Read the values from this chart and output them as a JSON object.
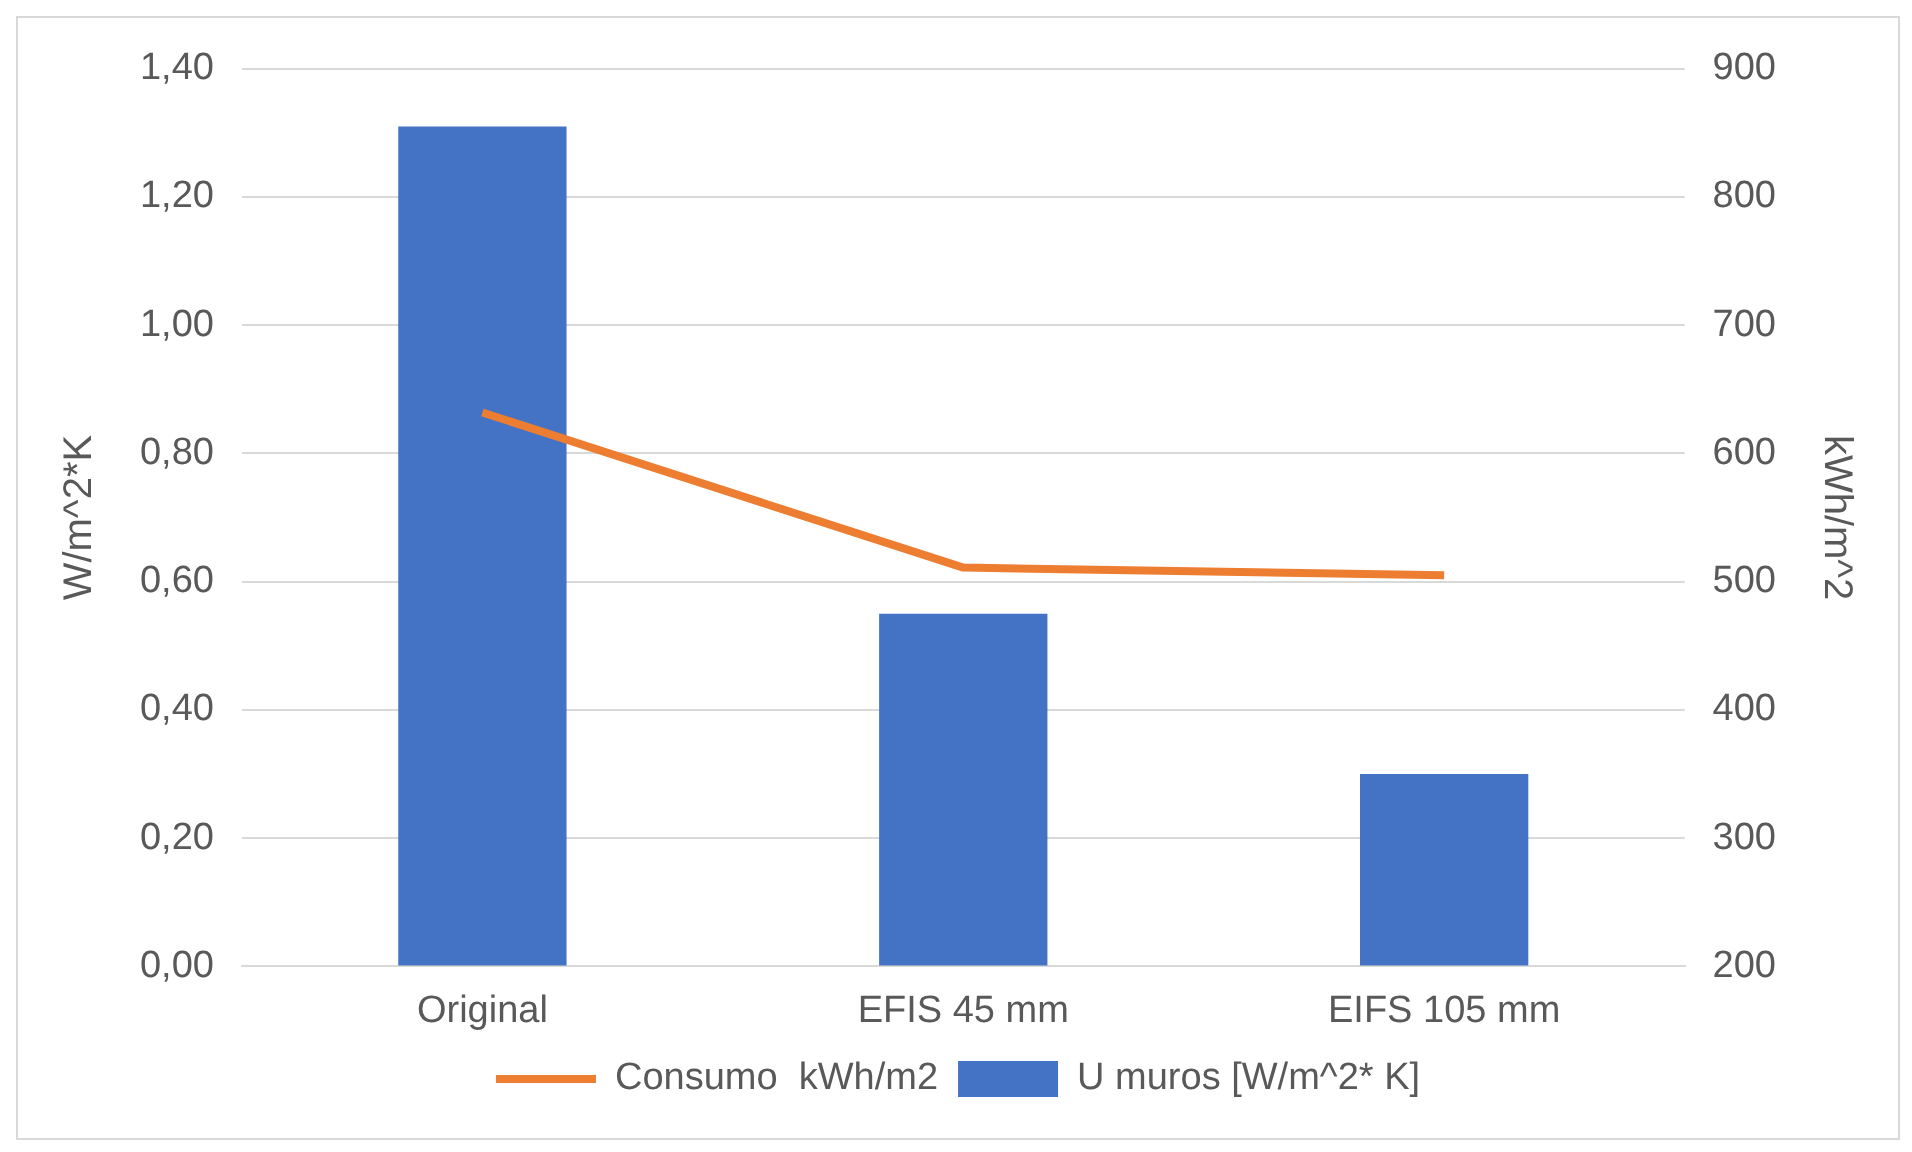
{
  "chart_data": {
    "type": "bar",
    "categories": [
      "Original",
      "EFIS 45 mm",
      "EIFS 105 mm"
    ],
    "series": [
      {
        "name": "U muros [W/m^2* K]",
        "color": "#4472c4",
        "values": [
          1.31,
          0.55,
          0.3
        ]
      },
      {
        "name": "Consumo  kWh/m2",
        "type": "line",
        "axis": "y2",
        "color": "#ed7d31",
        "values": [
          632,
          511,
          505
        ],
        "marker": "none"
      }
    ],
    "ylabel": "W/m^2*K",
    "y2label": "kWh/m^2",
    "ylim": [
      0,
      1.4
    ],
    "yticks": [
      {
        "value": 0,
        "label": "0,00"
      },
      {
        "value": 0.2,
        "label": "0,20"
      },
      {
        "value": 0.4,
        "label": "0,40"
      },
      {
        "value": 0.6,
        "label": "0,60"
      },
      {
        "value": 0.8,
        "label": "0,80"
      },
      {
        "value": 1,
        "label": "1,00"
      },
      {
        "value": 1.2,
        "label": "1,20"
      },
      {
        "value": 1.4,
        "label": "1,40"
      }
    ],
    "y2lim": [
      200,
      900
    ],
    "y2ticks": [
      200,
      300,
      400,
      500,
      600,
      700,
      800,
      900
    ],
    "grid": "y",
    "legend": "bottom"
  }
}
